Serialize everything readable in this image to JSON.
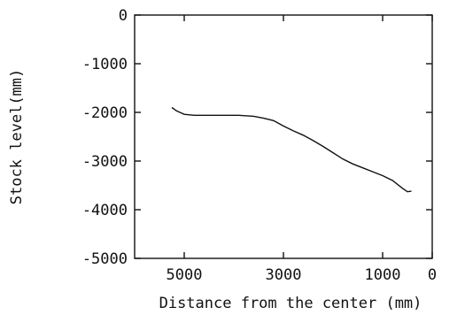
{
  "chart_data": {
    "type": "line",
    "title": "",
    "xlabel": "Distance from the center (mm)",
    "ylabel": "Stock level(mm)",
    "xlim": [
      6000,
      0
    ],
    "ylim": [
      -5000,
      0
    ],
    "x_reversed": true,
    "grid": false,
    "legend": "none",
    "xticks": [
      5000,
      3000,
      1000,
      0
    ],
    "xtick_labels": [
      "5000",
      "3000",
      "1000",
      "0"
    ],
    "yticks": [
      0,
      -1000,
      -2000,
      -3000,
      -4000,
      -5000
    ],
    "ytick_labels": [
      "0",
      "-1000",
      "-2000",
      "-3000",
      "-4000",
      "-5000"
    ],
    "series": [
      {
        "x": [
          5250,
          5150,
          5000,
          4800,
          4500,
          4200,
          3900,
          3600,
          3400,
          3200,
          3000,
          2800,
          2600,
          2400,
          2200,
          2000,
          1800,
          1600,
          1400,
          1200,
          1000,
          800,
          600,
          500,
          420
        ],
        "y": [
          -1900,
          -1970,
          -2040,
          -2060,
          -2060,
          -2060,
          -2060,
          -2080,
          -2120,
          -2170,
          -2280,
          -2380,
          -2470,
          -2580,
          -2700,
          -2830,
          -2960,
          -3060,
          -3140,
          -3220,
          -3300,
          -3400,
          -3560,
          -3630,
          -3620
        ]
      }
    ]
  }
}
